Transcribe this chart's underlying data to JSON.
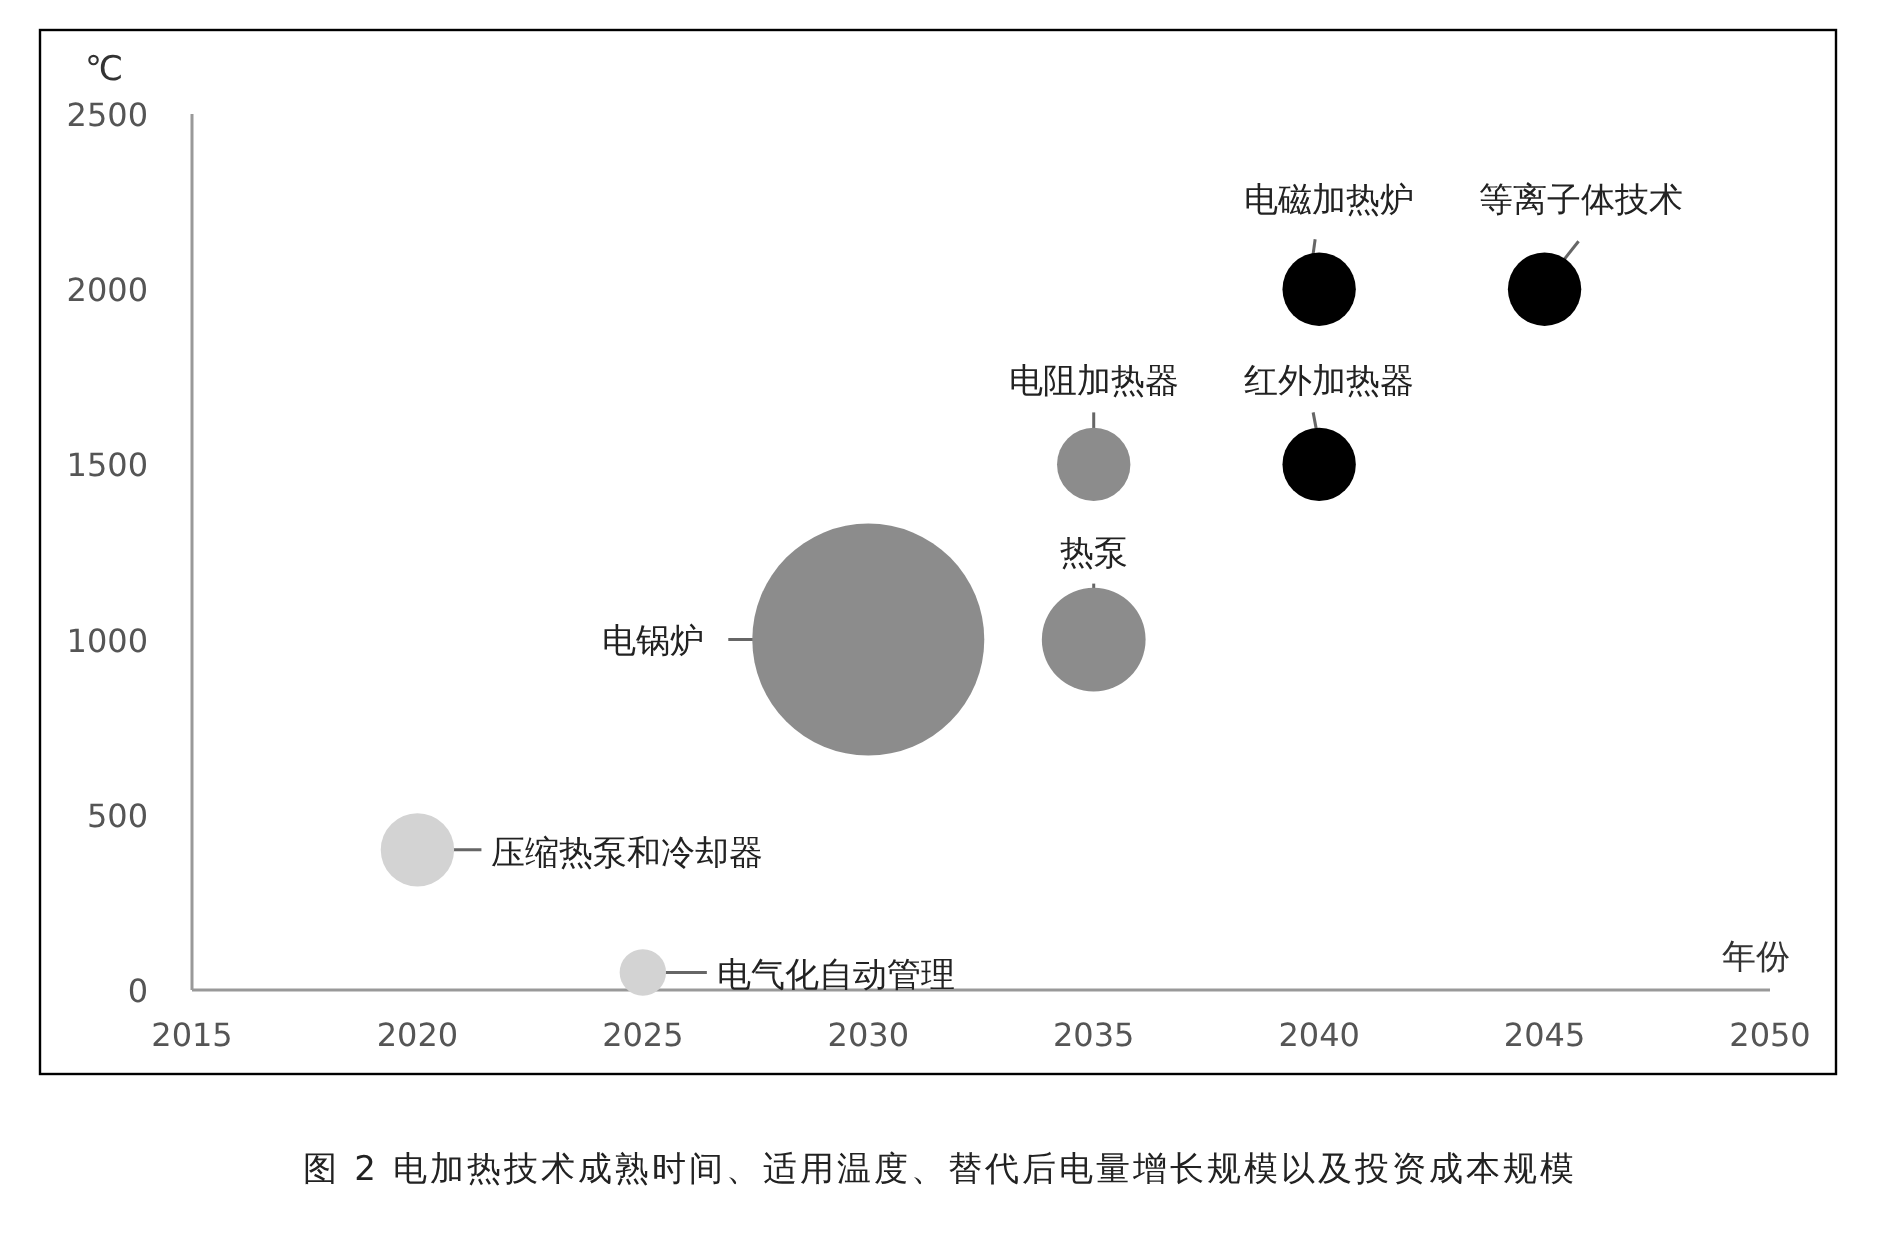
{
  "chart_data": {
    "type": "bubble",
    "ylabel": "℃",
    "xlabel": "年份",
    "xlim": [
      2015,
      2050
    ],
    "xticks": [
      2015,
      2020,
      2025,
      2030,
      2035,
      2040,
      2045,
      2050
    ],
    "ylim": [
      0,
      2500
    ],
    "yticks": [
      0,
      500,
      1000,
      1500,
      2000,
      2500
    ],
    "grid": false,
    "series": [
      {
        "x": [
          2020,
          2025,
          2030,
          2035,
          2035,
          2040,
          2040,
          2045
        ],
        "values": [
          400,
          50,
          1000,
          1000,
          1500,
          1500,
          2000,
          2000
        ],
        "sizes": [
          0.1,
          0.04,
          1,
          0.2,
          0.1,
          0.1,
          0.1,
          0.1
        ],
        "colors": [
          "#d3d3d3",
          "#d3d3d3",
          "#8c8c8c",
          "#8c8c8c",
          "#8c8c8c",
          "#000000",
          "#000000",
          "#000000"
        ]
      }
    ],
    "annotations": [
      {
        "text": "压缩热泵和冷却器",
        "x": 2020,
        "y": 400
      },
      {
        "text": "电气化自动管理",
        "x": 2025,
        "y": 50
      },
      {
        "text": "电锅炉",
        "x": 2030,
        "y": 1000
      },
      {
        "text": "热泵",
        "x": 2035,
        "y": 1000
      },
      {
        "text": "电阻加热器",
        "x": 2035,
        "y": 1500
      },
      {
        "text": "红外加热器",
        "x": 2040,
        "y": 1500
      },
      {
        "text": "电磁加热炉",
        "x": 2040,
        "y": 2000
      },
      {
        "text": "等离子体技术",
        "x": 2045,
        "y": 2000
      },
      "图 2  电加热技术成熟时间、适用温度、替代后电量增长规模以及投资成本规模"
    ]
  }
}
